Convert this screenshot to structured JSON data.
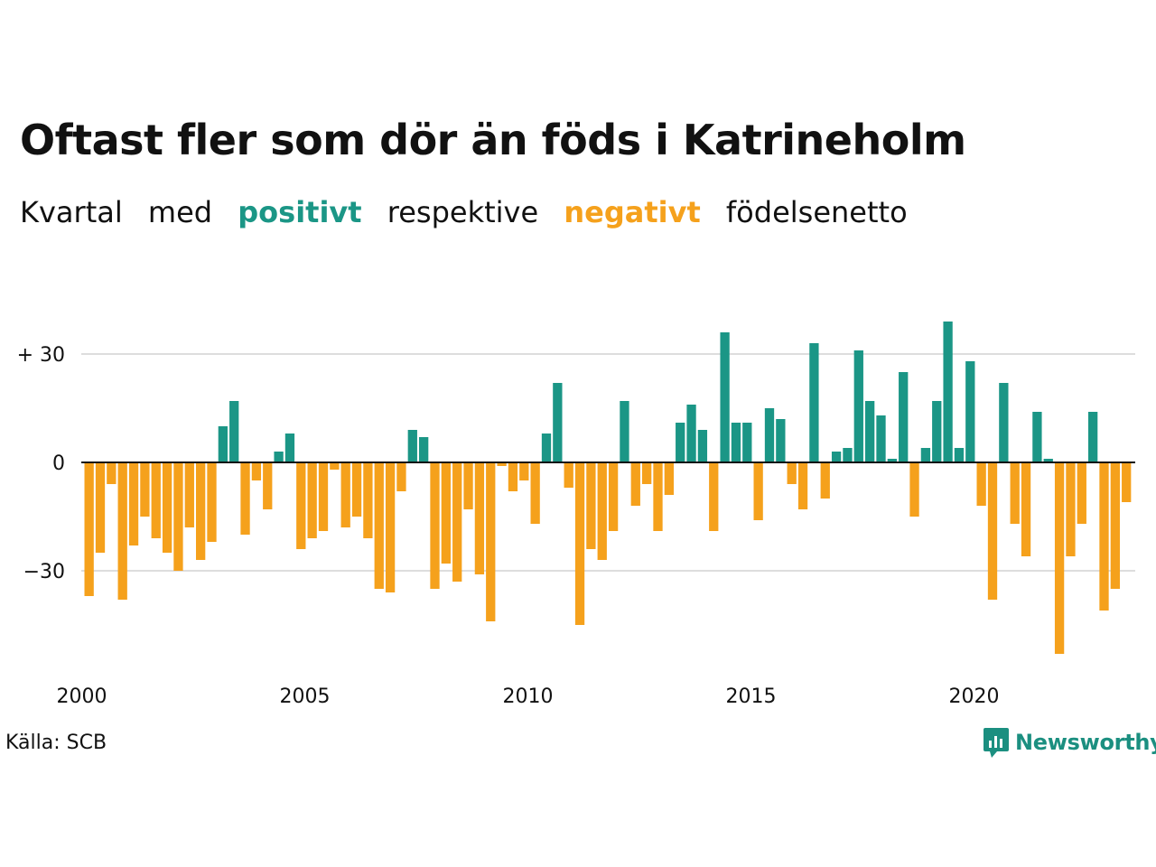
{
  "header": {
    "title": "Oftast fler som dör än föds i Katrineholm",
    "subtitle_parts": [
      "Kvartal",
      "med",
      "positivt",
      "respektive",
      "negativt",
      "födelsenetto"
    ]
  },
  "colors": {
    "positive": "#1b9686",
    "negative": "#f5a11c",
    "grid": "#dddddd"
  },
  "footer": {
    "source": "Källa: SCB",
    "brand": "Newsworthy",
    "brand_icon": "newsworthy-logo-icon"
  },
  "chart_data": {
    "type": "bar",
    "x_start": "2000 Q1",
    "x_ticks": [
      "2000",
      "2005",
      "2010",
      "2015",
      "2020"
    ],
    "y_ticks": [
      {
        "value": 30,
        "label": "+ 30"
      },
      {
        "value": 0,
        "label": "0"
      },
      {
        "value": -30,
        "label": "−30"
      }
    ],
    "ylim": [
      -56,
      42
    ],
    "grid": true,
    "values": [
      -37,
      -25,
      -6,
      -38,
      -23,
      -15,
      -21,
      -25,
      -30,
      -18,
      -27,
      -22,
      10,
      17,
      -20,
      -5,
      -13,
      3,
      8,
      -24,
      -21,
      -19,
      -2,
      -18,
      -15,
      -21,
      -35,
      -36,
      -8,
      9,
      7,
      -35,
      -28,
      -33,
      -13,
      -31,
      -44,
      -1,
      -8,
      -5,
      -17,
      8,
      22,
      -7,
      -45,
      -24,
      -27,
      -19,
      17,
      -12,
      -6,
      -19,
      -9,
      11,
      16,
      9,
      -19,
      36,
      11,
      11,
      -16,
      15,
      12,
      -6,
      -13,
      33,
      -10,
      3,
      4,
      31,
      17,
      13,
      1,
      25,
      -15,
      4,
      17,
      39,
      4,
      28,
      -12,
      -38,
      22,
      -17,
      -26,
      14,
      1,
      -53,
      -26,
      -17,
      14,
      -41,
      -35,
      -11
    ]
  }
}
